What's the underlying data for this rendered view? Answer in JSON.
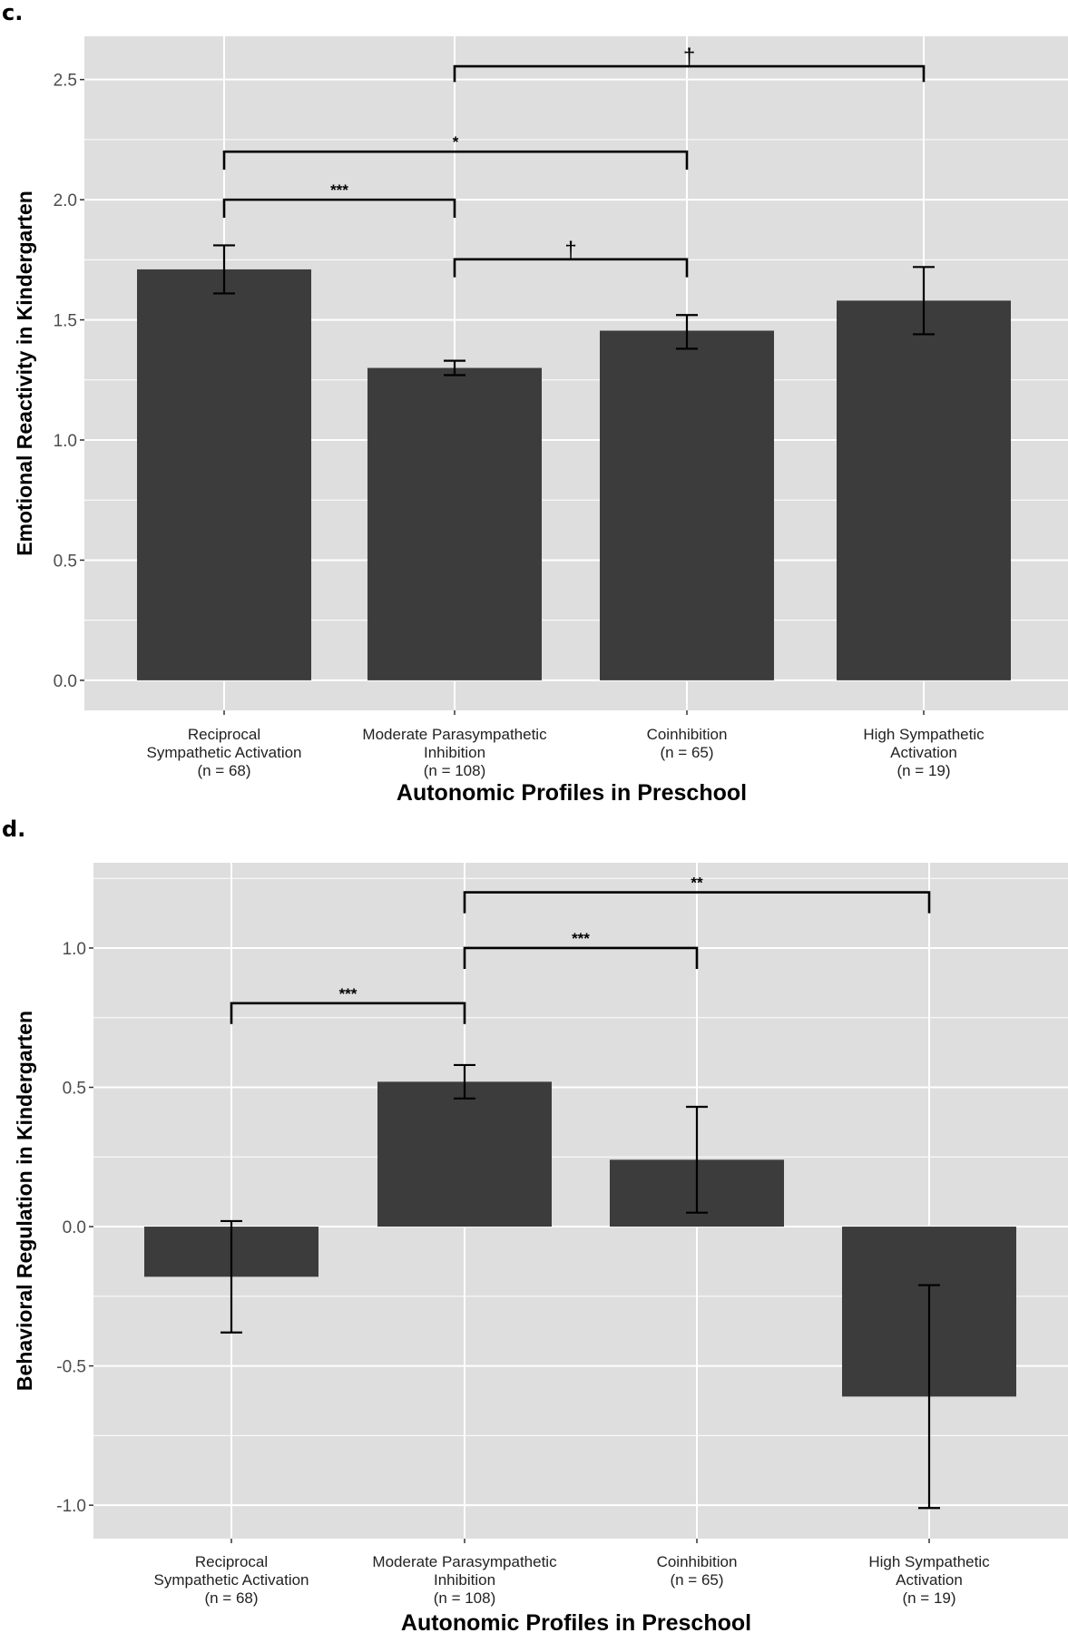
{
  "colors": {
    "panel": "#dedede",
    "grid": "#ffffff",
    "bar": "#3c3c3c",
    "ink": "#000000"
  },
  "chart_data": [
    {
      "panel_label": "c.",
      "type": "bar",
      "title": "",
      "xlabel": "Autonomic Profiles in Preschool",
      "ylabel": "Emotional Reactivity in Kindergarten",
      "categories": [
        [
          "Reciprocal",
          "Sympathetic Activation",
          "(n = 68)"
        ],
        [
          "Moderate Parasympathetic",
          "Inhibition",
          "(n = 108)"
        ],
        [
          "Coinhibition",
          "(n = 65)"
        ],
        [
          "High Sympathetic",
          "Activation",
          "(n = 19)"
        ]
      ],
      "values": [
        1.71,
        1.3,
        1.455,
        1.58
      ],
      "error_low": [
        1.61,
        1.27,
        1.38,
        1.44
      ],
      "error_high": [
        1.81,
        1.33,
        1.52,
        1.72
      ],
      "ylim": [
        -0.125,
        2.68
      ],
      "yticks": [
        "0.0",
        "0.5",
        "1.0",
        "1.5",
        "2.0",
        "2.5"
      ],
      "ytick_values": [
        0,
        0.5,
        1,
        1.5,
        2,
        2.5
      ],
      "grid": true,
      "brackets": [
        {
          "from": 1,
          "to": 3,
          "y": 2.555,
          "drop": 0.065,
          "label": "†"
        },
        {
          "from": 0,
          "to": 2,
          "y": 2.2,
          "drop": 0.075,
          "label": "*"
        },
        {
          "from": 0,
          "to": 1,
          "y": 2.0,
          "drop": 0.075,
          "label": "***"
        },
        {
          "from": 1,
          "to": 2,
          "y": 1.752,
          "drop": 0.075,
          "label": "†"
        }
      ]
    },
    {
      "panel_label": "d.",
      "type": "bar",
      "title": "",
      "xlabel": "Autonomic Profiles in Preschool",
      "ylabel": "Behavioral Regulation in Kindergarten",
      "categories": [
        [
          "Reciprocal",
          "Sympathetic Activation",
          "(n = 68)"
        ],
        [
          "Moderate Parasympathetic",
          "Inhibition",
          "(n = 108)"
        ],
        [
          "Coinhibition",
          "(n = 65)"
        ],
        [
          "High Sympathetic",
          "Activation",
          "(n = 19)"
        ]
      ],
      "values": [
        -0.18,
        0.52,
        0.24,
        -0.61
      ],
      "error_low": [
        -0.38,
        0.46,
        0.05,
        -1.01
      ],
      "error_high": [
        0.02,
        0.58,
        0.43,
        -0.21
      ],
      "ylim": [
        -1.12,
        1.306
      ],
      "yticks": [
        "-1.0",
        "-0.5",
        "0.0",
        "0.5",
        "1.0"
      ],
      "ytick_values": [
        -1,
        -0.5,
        0,
        0.5,
        1
      ],
      "grid": true,
      "brackets": [
        {
          "from": 1,
          "to": 3,
          "y": 1.2,
          "drop": 0.075,
          "label": "**"
        },
        {
          "from": 1,
          "to": 2,
          "y": 1.0,
          "drop": 0.075,
          "label": "***"
        },
        {
          "from": 0,
          "to": 1,
          "y": 0.802,
          "drop": 0.075,
          "label": "***"
        }
      ]
    }
  ]
}
